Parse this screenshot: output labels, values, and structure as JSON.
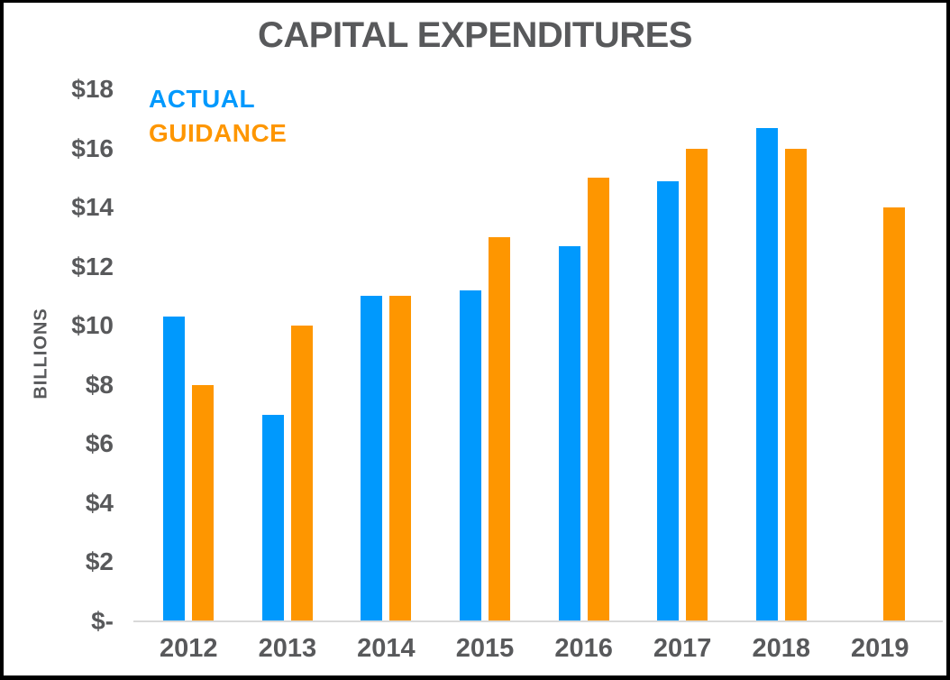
{
  "title": "CAPITAL EXPENDITURES",
  "y_axis_label": "BILLIONS",
  "legend": {
    "position": "top-left",
    "items": [
      {
        "label": "ACTUAL",
        "color": "#0099fd"
      },
      {
        "label": "GUIDANCE",
        "color": "#fe9600"
      }
    ]
  },
  "chart_data": {
    "type": "bar",
    "title": "CAPITAL EXPENDITURES",
    "xlabel": "",
    "ylabel": "BILLIONS",
    "units": "billions of dollars",
    "categories": [
      "2012",
      "2013",
      "2014",
      "2015",
      "2016",
      "2017",
      "2018",
      "2019"
    ],
    "series": [
      {
        "name": "ACTUAL",
        "color": "#0099fd",
        "values": [
          10.3,
          7.0,
          11.0,
          11.2,
          12.7,
          14.9,
          16.7,
          null
        ]
      },
      {
        "name": "GUIDANCE",
        "color": "#fe9600",
        "values": [
          8.0,
          10.0,
          11.0,
          13.0,
          15.0,
          16.0,
          16.0,
          14.0
        ]
      }
    ],
    "ylim": [
      0,
      18
    ],
    "y_ticks": [
      {
        "value": 18,
        "label": "$18"
      },
      {
        "value": 16,
        "label": "$16"
      },
      {
        "value": 14,
        "label": "$14"
      },
      {
        "value": 12,
        "label": "$12"
      },
      {
        "value": 10,
        "label": "$10"
      },
      {
        "value": 8,
        "label": "$8"
      },
      {
        "value": 6,
        "label": "$6"
      },
      {
        "value": 4,
        "label": "$4"
      },
      {
        "value": 2,
        "label": "$2"
      },
      {
        "value": 0,
        "label": "$-"
      }
    ],
    "grid": false,
    "legend_position": "top-left"
  },
  "colors": {
    "text": "#58595b",
    "axis_line": "#d9d9d9",
    "background": "#ffffff",
    "frame": "#000000",
    "actual": "#0099fd",
    "guidance": "#fe9600"
  }
}
